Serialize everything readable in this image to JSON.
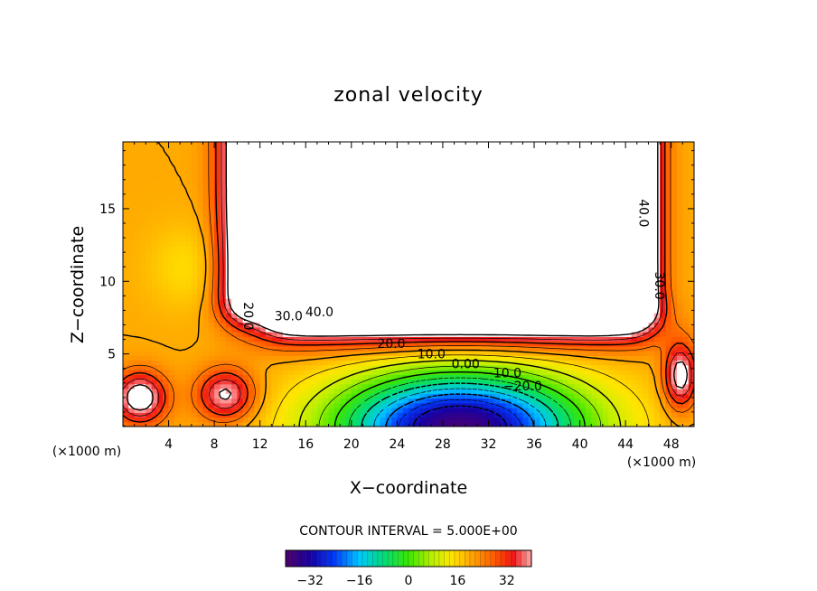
{
  "chart_data": {
    "type": "heatmap",
    "title": "zonal velocity",
    "xlabel": "X−coordinate",
    "ylabel": "Z−coordinate",
    "x_unit_left": "(×1000 m)",
    "x_unit_right": "(×1000 m)",
    "xlim": [
      0,
      50
    ],
    "ylim": [
      0,
      19.6
    ],
    "x_ticks": [
      4,
      8,
      12,
      16,
      20,
      24,
      28,
      32,
      36,
      40,
      44,
      48
    ],
    "x_tick_labels": [
      "4",
      "8",
      "12",
      "16",
      "20",
      "24",
      "28",
      "32",
      "36",
      "40",
      "44",
      "48"
    ],
    "y_ticks": [
      5,
      10,
      15
    ],
    "y_tick_labels": [
      "5",
      "10",
      "15"
    ],
    "contour_interval_text": "CONTOUR INTERVAL = 5.000E+00",
    "contour_interval": 5,
    "contour_labels": [
      {
        "text": "40.0",
        "x": 17.2,
        "y": 7.6
      },
      {
        "text": "30.0",
        "x": 14.5,
        "y": 7.3
      },
      {
        "text": "20.0",
        "x": 10.6,
        "y": 7.6
      },
      {
        "text": "20.0",
        "x": 23.5,
        "y": 5.4
      },
      {
        "text": "10.0",
        "x": 27.0,
        "y": 4.7
      },
      {
        "text": "0.00",
        "x": 30.0,
        "y": 4.0
      },
      {
        "text": "−10.0",
        "x": 33.2,
        "y": 3.4
      },
      {
        "text": "−20.0",
        "x": 35.0,
        "y": 2.5
      },
      {
        "text": "40.0",
        "x": 45.2,
        "y": 14.7
      },
      {
        "text": "30.0",
        "x": 46.6,
        "y": 9.7
      }
    ],
    "colorbar": {
      "range": [
        -40,
        40
      ],
      "ticks": [
        -32,
        -16,
        0,
        16,
        32
      ],
      "tick_labels": [
        "−32",
        "−16",
        "0",
        "16",
        "32"
      ]
    }
  }
}
